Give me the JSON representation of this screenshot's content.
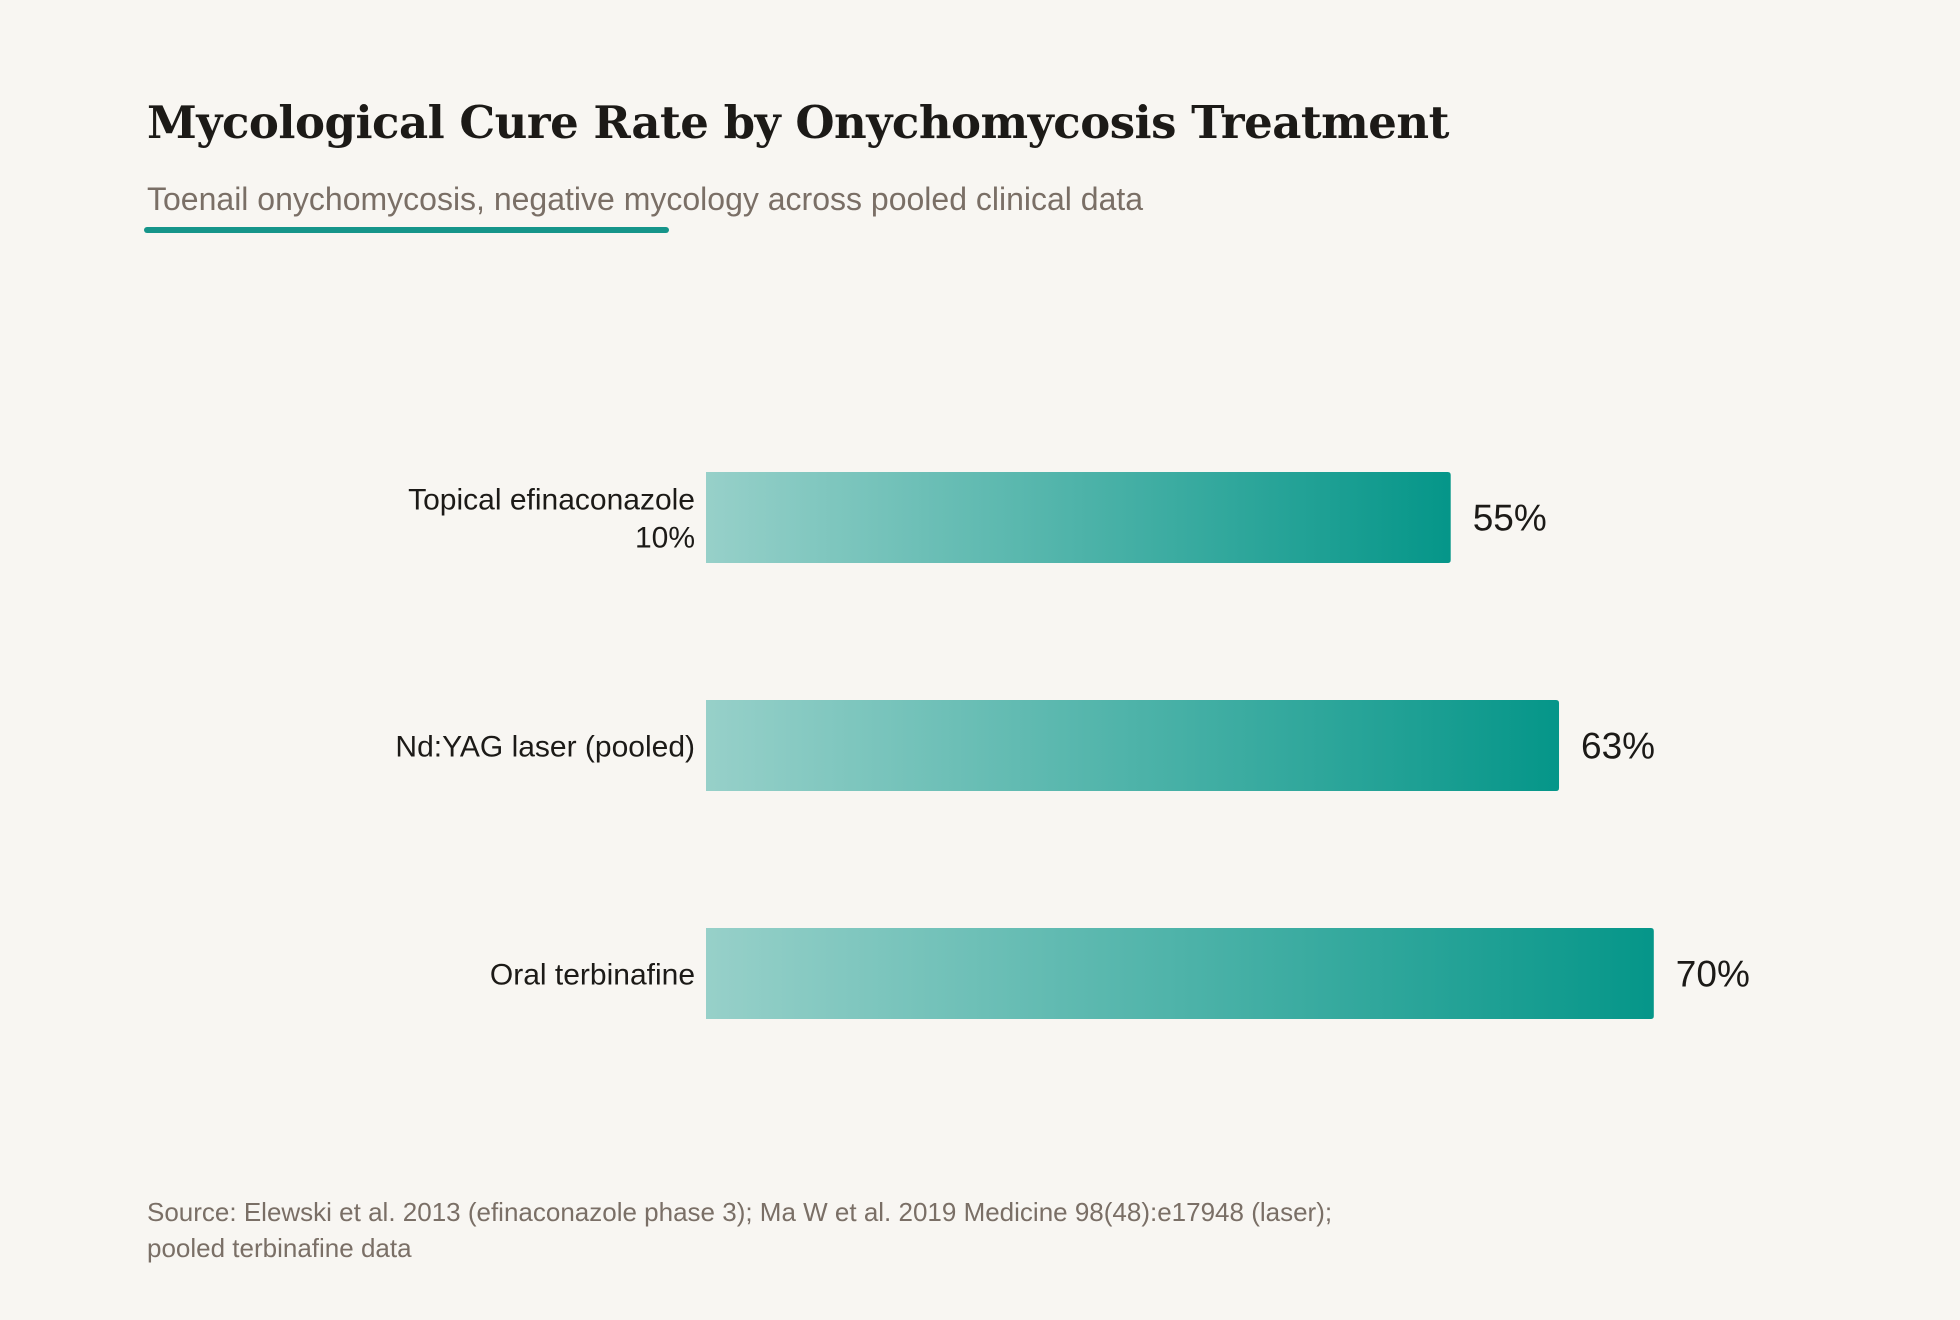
{
  "header": {
    "title": "Mycological Cure Rate by Onychomycosis Treatment",
    "subtitle": "Toenail onychomycosis, negative mycology across pooled clinical data"
  },
  "footer": {
    "source": "Source: Elewski et al. 2013 (efinaconazole phase 3); Ma W et al. 2019 Medicine 98(48):e17948 (laser); pooled terbinafine data"
  },
  "colors": {
    "background": "#f8f6f2",
    "accent": "#16958a",
    "bar_start": "#97d0c9",
    "bar_end": "#059689",
    "text": "#1c1a17",
    "muted_text": "#7a6f66"
  },
  "chart_data": {
    "type": "bar",
    "orientation": "horizontal",
    "title": "Mycological Cure Rate by Onychomycosis Treatment",
    "subtitle": "Toenail onychomycosis, negative mycology across pooled clinical data",
    "categories": [
      [
        "Topical efinaconazole",
        "10%"
      ],
      [
        "Nd:YAG laser (pooled)"
      ],
      [
        "Oral terbinafine"
      ]
    ],
    "values": [
      55,
      63,
      70
    ],
    "value_labels": [
      "55%",
      "63%",
      "70%"
    ],
    "unit": "%",
    "xlim": [
      0,
      100
    ],
    "grid": false,
    "legend": "none"
  }
}
